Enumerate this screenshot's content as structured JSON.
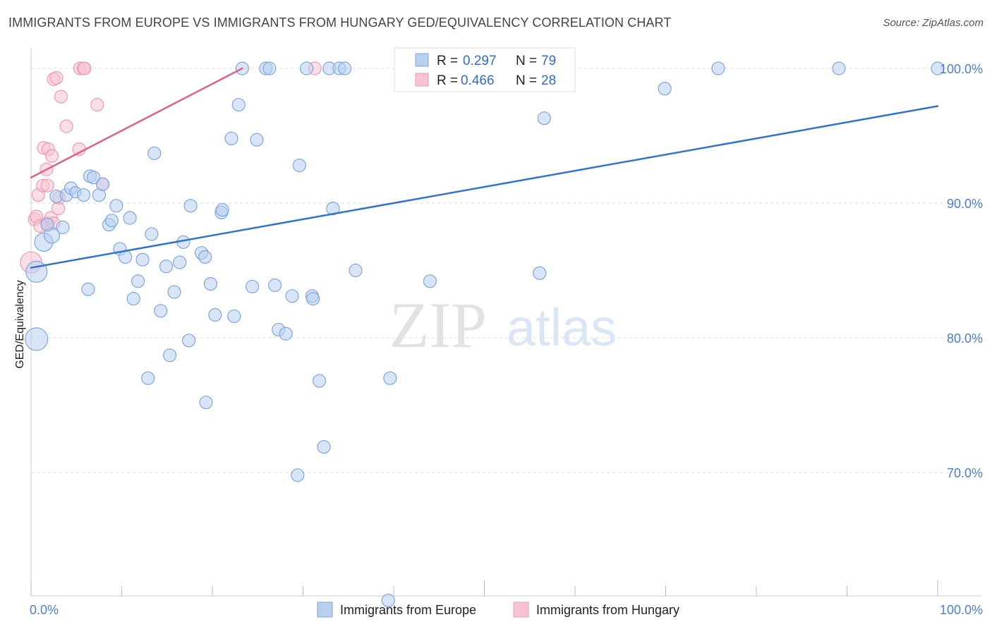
{
  "title": "IMMIGRANTS FROM EUROPE VS IMMIGRANTS FROM HUNGARY GED/EQUIVALENCY CORRELATION CHART",
  "source": "Source: ZipAtlas.com",
  "watermark": {
    "zip": "ZIP",
    "atlas": "atlas"
  },
  "colors": {
    "europe_fill": "#b8d0f0",
    "europe_stroke": "#7ea6dd",
    "europe_line": "#2f72d2",
    "hungary_fill": "#f6c3d2",
    "hungary_stroke": "#ee9ab4",
    "hungary_line": "#e0628c",
    "tick_text": "#4a7fd0",
    "grid": "#dddddd"
  },
  "legend": {
    "europe": {
      "r_label": "R = ",
      "r_value": "0.297",
      "n_label": "N = ",
      "n_value": "79"
    },
    "hungary": {
      "r_label": "R = ",
      "r_value": "0.466",
      "n_label": "N = ",
      "n_value": "28"
    }
  },
  "chart_data": {
    "type": "scatter",
    "xlabel": "",
    "ylabel": "GED/Equivalency",
    "xlim": [
      0,
      100
    ],
    "ylim": [
      60.5,
      101.5
    ],
    "y_ticks": [
      {
        "value": 100,
        "label": "100.0%"
      },
      {
        "value": 90,
        "label": "90.0%"
      },
      {
        "value": 80,
        "label": "80.0%"
      },
      {
        "value": 70,
        "label": "70.0%"
      }
    ],
    "x_ticks": [
      {
        "value": 0,
        "label": "0.0%"
      },
      {
        "value": 100,
        "label": "100.0%"
      }
    ],
    "grid": true,
    "legend_position": "top-center",
    "series": [
      {
        "name": "Immigrants from Europe",
        "r": 0.297,
        "n": 79,
        "trend": {
          "x": [
            0,
            100
          ],
          "y": [
            85.2,
            97.2
          ]
        },
        "points": [
          [
            0.6,
            84.9,
            15
          ],
          [
            0.6,
            79.9,
            16
          ],
          [
            1.4,
            87.1,
            13
          ],
          [
            2.3,
            87.6,
            11
          ],
          [
            1.8,
            88.4,
            9
          ],
          [
            3.5,
            88.2,
            9
          ],
          [
            2.8,
            90.5,
            9
          ],
          [
            3.9,
            90.6,
            9
          ],
          [
            4.4,
            91.1,
            9
          ],
          [
            4.9,
            90.8,
            8
          ],
          [
            5.8,
            90.6,
            9
          ],
          [
            6.3,
            83.6,
            9
          ],
          [
            6.5,
            92.0,
            9
          ],
          [
            6.9,
            91.9,
            9
          ],
          [
            7.5,
            90.6,
            9
          ],
          [
            7.9,
            91.4,
            9
          ],
          [
            8.6,
            88.4,
            9
          ],
          [
            8.9,
            88.7,
            9
          ],
          [
            9.4,
            89.8,
            9
          ],
          [
            9.8,
            86.6,
            9
          ],
          [
            10.4,
            86.0,
            9
          ],
          [
            10.9,
            88.9,
            9
          ],
          [
            11.3,
            82.9,
            9
          ],
          [
            11.8,
            84.2,
            9
          ],
          [
            12.3,
            85.8,
            9
          ],
          [
            12.9,
            77.0,
            9
          ],
          [
            13.3,
            87.7,
            9
          ],
          [
            13.6,
            93.7,
            9
          ],
          [
            14.3,
            82.0,
            9
          ],
          [
            14.9,
            85.3,
            9
          ],
          [
            15.3,
            78.7,
            9
          ],
          [
            15.8,
            83.4,
            9
          ],
          [
            16.4,
            85.6,
            9
          ],
          [
            16.8,
            87.1,
            9
          ],
          [
            17.4,
            79.8,
            9
          ],
          [
            17.6,
            89.8,
            9
          ],
          [
            18.8,
            86.3,
            9
          ],
          [
            19.2,
            86.0,
            9
          ],
          [
            19.3,
            75.2,
            9
          ],
          [
            19.8,
            84.0,
            9
          ],
          [
            20.3,
            81.7,
            9
          ],
          [
            21.0,
            89.3,
            9
          ],
          [
            21.1,
            89.5,
            9
          ],
          [
            22.4,
            81.6,
            9
          ],
          [
            22.1,
            94.8,
            9
          ],
          [
            22.9,
            97.3,
            9
          ],
          [
            23.3,
            100.0,
            9
          ],
          [
            24.4,
            83.8,
            9
          ],
          [
            24.9,
            94.7,
            9
          ],
          [
            25.9,
            100.0,
            9
          ],
          [
            26.3,
            100.0,
            9
          ],
          [
            26.9,
            83.9,
            9
          ],
          [
            27.3,
            80.6,
            9
          ],
          [
            28.1,
            80.3,
            9
          ],
          [
            28.8,
            83.1,
            9
          ],
          [
            29.4,
            69.8,
            9
          ],
          [
            29.6,
            92.8,
            9
          ],
          [
            30.4,
            100.0,
            9
          ],
          [
            31.0,
            83.1,
            9
          ],
          [
            31.1,
            82.9,
            9
          ],
          [
            31.8,
            76.8,
            9
          ],
          [
            32.3,
            71.9,
            9
          ],
          [
            32.9,
            100.0,
            9
          ],
          [
            33.3,
            89.6,
            9
          ],
          [
            34.0,
            100.0,
            9
          ],
          [
            34.6,
            100.0,
            9
          ],
          [
            35.8,
            85.0,
            9
          ],
          [
            39.6,
            77.0,
            9
          ],
          [
            39.4,
            60.5,
            9
          ],
          [
            44.0,
            84.2,
            9
          ],
          [
            47.8,
            100.0,
            9
          ],
          [
            56.1,
            84.8,
            9
          ],
          [
            56.6,
            96.3,
            9
          ],
          [
            69.9,
            98.5,
            9
          ],
          [
            75.8,
            100.0,
            9
          ],
          [
            89.1,
            100.0,
            9
          ],
          [
            100.0,
            100.0,
            9
          ]
        ]
      },
      {
        "name": "Immigrants from Hungary",
        "r": 0.466,
        "n": 28,
        "trend": {
          "x": [
            0,
            23.3
          ],
          "y": [
            91.9,
            100.0
          ]
        },
        "points": [
          [
            0.0,
            85.6,
            15
          ],
          [
            0.4,
            88.8,
            9
          ],
          [
            0.6,
            89.0,
            9
          ],
          [
            0.8,
            90.6,
            9
          ],
          [
            1.0,
            88.3,
            9
          ],
          [
            1.3,
            91.3,
            9
          ],
          [
            1.4,
            94.1,
            9
          ],
          [
            1.7,
            92.5,
            9
          ],
          [
            1.8,
            91.3,
            9
          ],
          [
            1.8,
            88.5,
            9
          ],
          [
            1.9,
            94.0,
            9
          ],
          [
            2.3,
            93.5,
            9
          ],
          [
            2.2,
            88.9,
            9
          ],
          [
            2.5,
            88.5,
            9
          ],
          [
            2.5,
            99.2,
            9
          ],
          [
            2.8,
            99.3,
            9
          ],
          [
            3.0,
            89.6,
            9
          ],
          [
            3.1,
            90.4,
            9
          ],
          [
            3.3,
            97.9,
            9
          ],
          [
            3.9,
            95.7,
            9
          ],
          [
            5.3,
            94.0,
            9
          ],
          [
            5.4,
            100.0,
            9
          ],
          [
            5.8,
            100.0,
            9
          ],
          [
            5.9,
            100.0,
            9
          ],
          [
            7.3,
            97.3,
            9
          ],
          [
            7.9,
            91.4,
            9
          ],
          [
            31.3,
            100.0,
            9
          ]
        ]
      }
    ]
  }
}
